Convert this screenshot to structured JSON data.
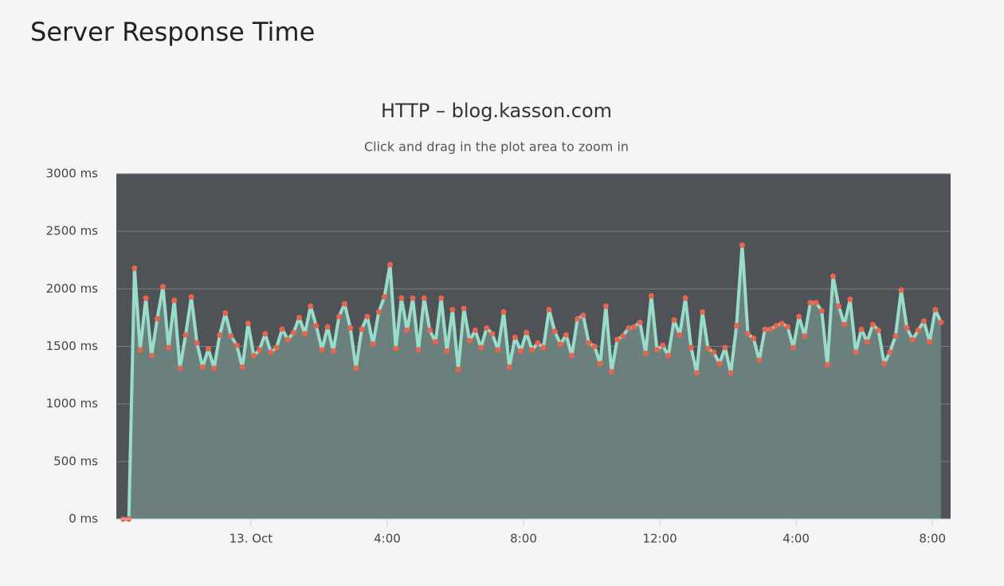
{
  "header": {
    "title": "Server Response Time"
  },
  "chart_data": {
    "type": "line",
    "title": "HTTP – blog.kasson.com",
    "subtitle": "Click and drag in the plot area to zoom in",
    "x": [
      -225,
      -215,
      -205,
      -195,
      -185,
      -175,
      -165,
      -155,
      -145,
      -135,
      -125,
      -115,
      -105,
      -95,
      -85,
      -75,
      -65,
      -55,
      -45,
      -35,
      -25,
      -15,
      -5,
      5,
      15,
      25,
      35,
      45,
      55,
      65,
      75,
      85,
      95,
      105,
      115,
      125,
      135,
      145,
      155,
      165,
      175,
      185,
      195,
      205,
      215,
      225,
      235,
      245,
      255,
      265,
      275,
      285,
      295,
      305,
      315,
      325,
      335,
      345,
      355,
      365,
      375,
      385,
      395,
      405,
      415,
      425,
      435,
      445,
      455,
      465,
      475,
      485,
      495,
      505,
      515,
      525,
      535,
      545,
      555,
      565,
      575,
      585,
      595,
      605,
      615,
      625,
      635,
      645,
      655,
      665,
      675,
      685,
      695,
      705,
      715,
      725,
      735,
      745,
      755,
      765,
      775,
      785,
      795,
      805,
      815,
      825,
      835,
      845,
      855,
      865,
      875,
      885,
      895,
      905,
      915,
      925,
      935,
      945,
      955,
      965,
      975,
      985,
      995,
      1005,
      1015,
      1025,
      1035,
      1045,
      1055,
      1065,
      1075,
      1085,
      1095,
      1105,
      1115,
      1125,
      1135,
      1145,
      1155,
      1165,
      1175,
      1185,
      1195,
      1205,
      1215
    ],
    "values": [
      0,
      0,
      2180,
      1470,
      1920,
      1420,
      1740,
      2020,
      1490,
      1900,
      1310,
      1600,
      1930,
      1530,
      1320,
      1480,
      1310,
      1600,
      1790,
      1590,
      1510,
      1320,
      1700,
      1420,
      1470,
      1610,
      1450,
      1490,
      1650,
      1560,
      1620,
      1750,
      1610,
      1850,
      1680,
      1470,
      1670,
      1460,
      1760,
      1870,
      1660,
      1310,
      1650,
      1760,
      1520,
      1800,
      1930,
      2210,
      1480,
      1920,
      1640,
      1920,
      1470,
      1920,
      1640,
      1540,
      1920,
      1460,
      1820,
      1300,
      1830,
      1550,
      1640,
      1490,
      1660,
      1610,
      1470,
      1800,
      1320,
      1580,
      1460,
      1620,
      1470,
      1530,
      1490,
      1820,
      1630,
      1520,
      1600,
      1420,
      1740,
      1770,
      1530,
      1500,
      1350,
      1850,
      1280,
      1560,
      1590,
      1660,
      1670,
      1710,
      1440,
      1940,
      1470,
      1510,
      1420,
      1730,
      1600,
      1920,
      1490,
      1270,
      1800,
      1480,
      1450,
      1350,
      1490,
      1270,
      1680,
      2380,
      1610,
      1570,
      1380,
      1650,
      1650,
      1680,
      1700,
      1670,
      1490,
      1760,
      1590,
      1880,
      1880,
      1810,
      1340,
      2110,
      1850,
      1690,
      1910,
      1450,
      1650,
      1540,
      1690,
      1640,
      1350,
      1450,
      1590,
      1990,
      1660,
      1560,
      1640,
      1720,
      1540,
      1820,
      1710
    ],
    "color": "#98dcc9",
    "marker_color": "#e8654d",
    "area_color": "#6b807d",
    "background_color": "#4f5358",
    "xlim": [
      -237,
      1232
    ],
    "xticks": [
      {
        "value": 0,
        "label": "13. Oct"
      },
      {
        "value": 240,
        "label": "4:00"
      },
      {
        "value": 480,
        "label": "8:00"
      },
      {
        "value": 720,
        "label": "12:00"
      },
      {
        "value": 960,
        "label": "4:00"
      },
      {
        "value": 1200,
        "label": "8:00"
      }
    ],
    "ylim": [
      0,
      3000
    ],
    "yticks": [
      {
        "value": 0,
        "label": "0 ms"
      },
      {
        "value": 500,
        "label": "500 ms"
      },
      {
        "value": 1000,
        "label": "1000 ms"
      },
      {
        "value": 1500,
        "label": "1500 ms"
      },
      {
        "value": 2000,
        "label": "2000 ms"
      },
      {
        "value": 2500,
        "label": "2500 ms"
      },
      {
        "value": 3000,
        "label": "3000 ms"
      }
    ],
    "grid": true
  }
}
